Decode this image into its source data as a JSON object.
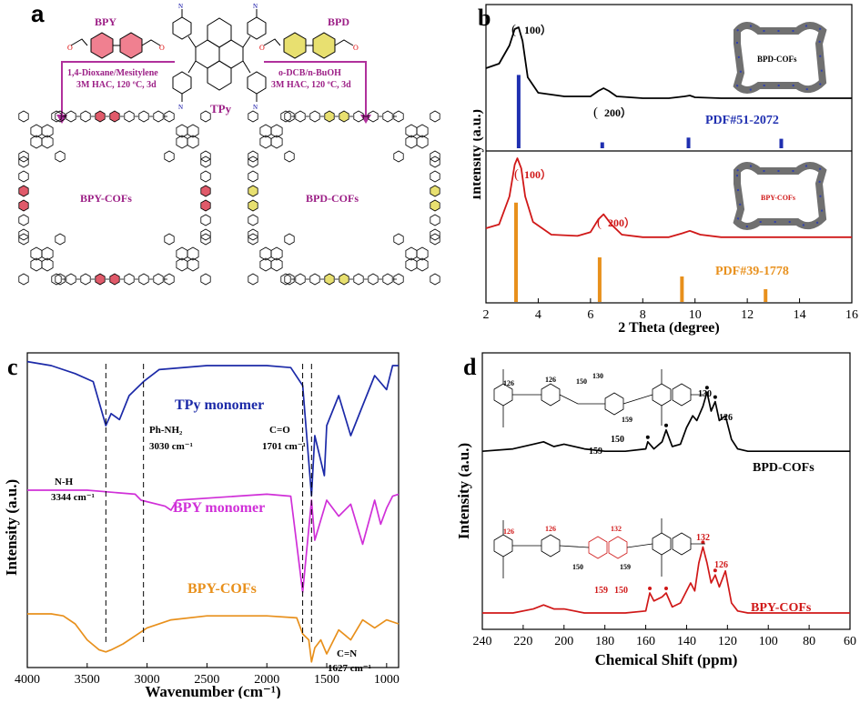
{
  "panels": {
    "a": {
      "label": "a",
      "monomer_left": "BPY",
      "monomer_right": "BPD",
      "center_monomer": "TPy",
      "cond_left_1": "1,4-Dioxane/Mesitylene",
      "cond_left_2": "3M HAC, 120 ºC, 3d",
      "cond_right_1": "o-DCB/n-BuOH",
      "cond_right_2": "3M HAC, 120 ºC, 3d",
      "product_left": "BPY-COFs",
      "product_right": "BPD-COFs",
      "amine_label": "N H H",
      "colors": {
        "arrow": "#b0309c",
        "bpy_ring": "#e05060",
        "bpd_ring": "#e8e070",
        "text": "#9c1f86"
      }
    },
    "b": {
      "label": "b",
      "ylabel": "Intensity (a.u.)",
      "xlabel": "2 Theta (degree)",
      "ticks": [
        "2",
        "4",
        "6",
        "8",
        "10",
        "12",
        "14",
        "16"
      ],
      "top": {
        "peak1": "100）",
        "peak2": "200）",
        "pdf": "PDF#51-2072",
        "inset": "BPD-COFs",
        "open1": "(",
        "open2": "("
      },
      "bottom": {
        "peak1": "100）",
        "peak2": "200）",
        "pdf": "PDF#39-1778",
        "inset": "BPY-COFs",
        "open1": "(",
        "open2": "("
      }
    },
    "c": {
      "label": "c",
      "ylabel": "Intensity (a.u.)",
      "xlabel": "Wavenumber (cm⁻¹)",
      "ticks": [
        "4000",
        "3500",
        "3000",
        "2500",
        "2000",
        "1500",
        "1000"
      ],
      "series": [
        "TPy monomer",
        "BPY monomer",
        "BPY-COFs"
      ],
      "ann": {
        "nh": "N-H",
        "nh_val": "3344 cm⁻¹",
        "phnh": "Ph-NH₂",
        "phnh_val": "3030 cm⁻¹",
        "co": "C=O",
        "co_val": "1701 cm⁻¹",
        "cn": "C=N",
        "cn_val": "1627 cm⁻¹"
      }
    },
    "d": {
      "label": "d",
      "ylabel": "Intensity (a.u.)",
      "xlabel": "Chemical Shift (ppm)",
      "ticks": [
        "240",
        "220",
        "200",
        "180",
        "160",
        "140",
        "120",
        "100",
        "80",
        "60"
      ],
      "series": [
        "BPD-COFs",
        "BPY-COFs"
      ],
      "peaks_top": [
        "159",
        "150",
        "130",
        "126"
      ],
      "peaks_bottom": [
        "159",
        "150",
        "132",
        "126"
      ],
      "struct_top": [
        "126",
        "126",
        "150",
        "130",
        "159"
      ],
      "struct_bottom": [
        "126",
        "126",
        "132",
        "150",
        "159"
      ]
    }
  },
  "chart_data": [
    {
      "type": "line",
      "panel": "b",
      "xlabel": "2 Theta (degree)",
      "ylabel": "Intensity (a.u.)",
      "xlim": [
        2,
        16
      ],
      "series": [
        {
          "name": "BPD-COFs",
          "x": [
            2,
            2.5,
            2.9,
            3.1,
            3.25,
            3.4,
            3.6,
            4,
            5,
            6,
            6.3,
            6.5,
            6.7,
            7,
            8,
            9,
            9.6,
            9.8,
            10,
            11,
            12,
            13,
            14,
            15,
            16
          ],
          "y": [
            0.55,
            0.6,
            0.8,
            0.98,
            1.0,
            0.85,
            0.45,
            0.28,
            0.24,
            0.24,
            0.3,
            0.33,
            0.3,
            0.24,
            0.22,
            0.22,
            0.24,
            0.25,
            0.23,
            0.22,
            0.22,
            0.22,
            0.22,
            0.22,
            0.22
          ]
        },
        {
          "name": "BPY-COFs",
          "x": [
            2,
            2.5,
            2.9,
            3.1,
            3.2,
            3.35,
            3.5,
            3.8,
            4.5,
            5.5,
            6,
            6.3,
            6.5,
            6.8,
            7.2,
            8,
            9,
            9.5,
            9.8,
            10.2,
            11,
            12,
            13,
            14,
            15,
            16
          ],
          "y": [
            0.35,
            0.38,
            0.6,
            0.85,
            0.9,
            0.82,
            0.6,
            0.4,
            0.3,
            0.29,
            0.32,
            0.42,
            0.46,
            0.38,
            0.3,
            0.28,
            0.28,
            0.31,
            0.33,
            0.3,
            0.28,
            0.28,
            0.28,
            0.28,
            0.28,
            0.28
          ]
        }
      ],
      "reference": [
        {
          "name": "PDF#51-2072",
          "x": [
            3.25,
            6.45,
            9.75,
            13.3
          ],
          "y": [
            0.62,
            0.05,
            0.09,
            0.08
          ]
        },
        {
          "name": "PDF#39-1778",
          "x": [
            3.15,
            6.35,
            9.5,
            12.7
          ],
          "y": [
            0.78,
            0.35,
            0.2,
            0.1
          ]
        }
      ]
    },
    {
      "type": "line",
      "panel": "c",
      "xlabel": "Wavenumber (cm⁻¹)",
      "ylabel": "Intensity (a.u.)",
      "xlim": [
        4000,
        900
      ],
      "series": [
        {
          "name": "TPy monomer",
          "x": [
            4000,
            3800,
            3600,
            3450,
            3344,
            3300,
            3230,
            3150,
            3030,
            2900,
            2500,
            2000,
            1800,
            1701,
            1627,
            1600,
            1520,
            1500,
            1400,
            1300,
            1200,
            1100,
            1000,
            950,
            900
          ],
          "y": [
            0.92,
            0.9,
            0.86,
            0.82,
            0.6,
            0.66,
            0.63,
            0.75,
            0.82,
            0.88,
            0.9,
            0.9,
            0.89,
            0.8,
            0.25,
            0.55,
            0.35,
            0.6,
            0.75,
            0.55,
            0.7,
            0.85,
            0.78,
            0.9,
            0.9
          ]
        },
        {
          "name": "BPY monomer",
          "x": [
            4000,
            3500,
            3100,
            3050,
            2850,
            2800,
            2750,
            2000,
            1800,
            1701,
            1627,
            1600,
            1500,
            1400,
            1300,
            1200,
            1100,
            1050,
            1000,
            950,
            900
          ],
          "y": [
            0.55,
            0.55,
            0.53,
            0.5,
            0.47,
            0.45,
            0.5,
            0.53,
            0.52,
            0.04,
            0.5,
            0.3,
            0.5,
            0.42,
            0.48,
            0.28,
            0.5,
            0.38,
            0.46,
            0.52,
            0.53
          ]
        },
        {
          "name": "BPY-COFs",
          "x": [
            4000,
            3800,
            3700,
            3600,
            3500,
            3400,
            3344,
            3300,
            3200,
            3100,
            3000,
            2800,
            2500,
            2000,
            1750,
            1701,
            1650,
            1627,
            1600,
            1550,
            1500,
            1400,
            1300,
            1200,
            1100,
            1000,
            900
          ],
          "y": [
            0.25,
            0.25,
            0.24,
            0.2,
            0.12,
            0.07,
            0.06,
            0.07,
            0.1,
            0.14,
            0.18,
            0.22,
            0.24,
            0.24,
            0.23,
            0.15,
            0.12,
            0.01,
            0.08,
            0.12,
            0.05,
            0.17,
            0.12,
            0.22,
            0.18,
            0.22,
            0.2
          ]
        }
      ]
    },
    {
      "type": "line",
      "panel": "d",
      "xlabel": "Chemical Shift (ppm)",
      "ylabel": "Intensity (a.u.)",
      "xlim": [
        240,
        60
      ],
      "series": [
        {
          "name": "BPD-COFs",
          "x": [
            240,
            225,
            215,
            210,
            205,
            200,
            190,
            180,
            170,
            160,
            159,
            156,
            152,
            150,
            147,
            143,
            140,
            137,
            135,
            132,
            130,
            128,
            126,
            124,
            121,
            118,
            115,
            110,
            100,
            90,
            80,
            70,
            60
          ],
          "y": [
            0.63,
            0.64,
            0.66,
            0.67,
            0.65,
            0.66,
            0.64,
            0.63,
            0.63,
            0.64,
            0.67,
            0.64,
            0.67,
            0.72,
            0.65,
            0.66,
            0.73,
            0.78,
            0.76,
            0.82,
            0.88,
            0.8,
            0.84,
            0.76,
            0.78,
            0.68,
            0.64,
            0.63,
            0.63,
            0.63,
            0.63,
            0.63,
            0.63
          ]
        },
        {
          "name": "BPY-COFs",
          "x": [
            240,
            225,
            215,
            210,
            205,
            200,
            190,
            180,
            170,
            160,
            158,
            156,
            152,
            150,
            147,
            143,
            138,
            136,
            134,
            132,
            130,
            128,
            126,
            124,
            121,
            118,
            115,
            110,
            100,
            90,
            80,
            70,
            60
          ],
          "y": [
            0.05,
            0.05,
            0.07,
            0.09,
            0.07,
            0.07,
            0.05,
            0.05,
            0.05,
            0.06,
            0.15,
            0.11,
            0.13,
            0.15,
            0.08,
            0.1,
            0.2,
            0.16,
            0.3,
            0.38,
            0.3,
            0.2,
            0.24,
            0.18,
            0.26,
            0.1,
            0.06,
            0.05,
            0.05,
            0.05,
            0.05,
            0.05,
            0.05
          ]
        }
      ]
    }
  ]
}
